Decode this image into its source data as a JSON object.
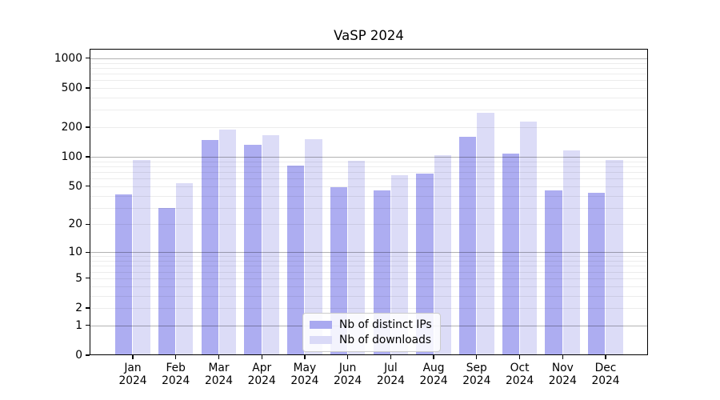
{
  "title": "VaSP 2024",
  "chart_data": {
    "type": "bar",
    "title": "VaSP 2024",
    "yscale": "log1p",
    "grid": true,
    "legend_position": "lower center",
    "ylim": [
      0,
      1248
    ],
    "yticks": [
      0,
      1,
      2,
      5,
      10,
      20,
      50,
      100,
      200,
      500,
      1000
    ],
    "categories": [
      "Jan 2024",
      "Feb 2024",
      "Mar 2024",
      "Apr 2024",
      "May 2024",
      "Jun 2024",
      "Jul 2024",
      "Aug 2024",
      "Sep 2024",
      "Oct 2024",
      "Nov 2024",
      "Dec 2024"
    ],
    "series": [
      {
        "name": "Nb of distinct IPs",
        "color": "#a9a9f0",
        "values": [
          41,
          30,
          150,
          134,
          81,
          49,
          45,
          67,
          160,
          108,
          45,
          43
        ]
      },
      {
        "name": "Nb of downloads",
        "color": "#dadaf7",
        "values": [
          93,
          54,
          188,
          166,
          151,
          91,
          65,
          105,
          280,
          230,
          116,
          93
        ]
      }
    ]
  },
  "colors": {
    "background": "#ffffff",
    "spine": "#000000",
    "major_grid": "#b3b3b3",
    "minor_grid": "#ececec"
  }
}
